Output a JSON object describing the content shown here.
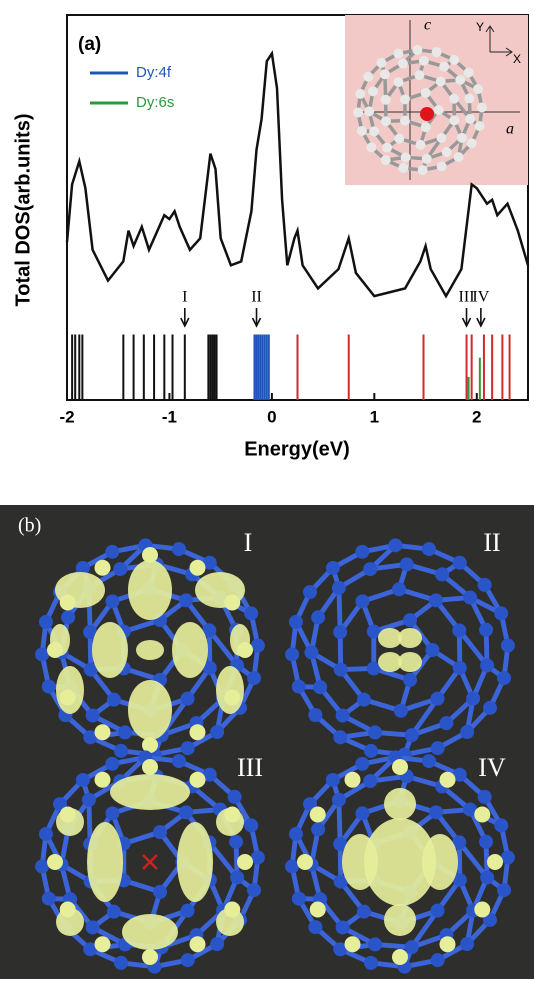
{
  "chart_data": {
    "type": "line",
    "title": "(a)",
    "xlabel": "Energy(eV)",
    "ylabel": "Total DOS(arb.units)",
    "xlim": [
      -2,
      2.5
    ],
    "xticks": [
      -2,
      -1,
      0,
      1,
      2
    ],
    "ylim": [
      0,
      100
    ],
    "series": [
      {
        "color": "#111111",
        "x": [
          -2.0,
          -1.95,
          -1.88,
          -1.82,
          -1.75,
          -1.6,
          -1.45,
          -1.4,
          -1.35,
          -1.27,
          -1.2,
          -1.1,
          -1.05,
          -1.0,
          -0.95,
          -0.9,
          -0.8,
          -0.7,
          -0.6,
          -0.55,
          -0.5,
          -0.4,
          -0.3,
          -0.2,
          -0.15,
          -0.1,
          -0.05,
          0.0,
          0.05,
          0.1,
          0.15,
          0.22,
          0.25,
          0.3,
          0.45,
          0.65,
          0.75,
          0.82,
          1.0,
          1.3,
          1.45,
          1.5,
          1.55,
          1.7,
          1.85,
          1.95,
          2.0,
          2.05,
          2.1,
          2.15,
          2.2,
          2.3,
          2.4,
          2.5
        ],
        "values": [
          41,
          56,
          62,
          55,
          39,
          31,
          36,
          44,
          40,
          45,
          39,
          45,
          48,
          47,
          49,
          45,
          39,
          42,
          64,
          60,
          42,
          35,
          36,
          49,
          65,
          73,
          88,
          90,
          81,
          52,
          35,
          42,
          44,
          35,
          29,
          34,
          42,
          33,
          27,
          29,
          36,
          40,
          34,
          27,
          34,
          56,
          55,
          53,
          51,
          52,
          48,
          51,
          44,
          35
        ]
      }
    ],
    "levels": [
      {
        "color": "#111111",
        "x": [
          -1.95,
          -1.92,
          -1.88,
          -1.85,
          -1.45,
          -1.35,
          -1.25,
          -1.15,
          -1.05,
          -0.97,
          -0.85,
          -0.62,
          -0.6,
          -0.58,
          -0.56,
          -0.54
        ],
        "values": [
          17,
          17,
          17,
          17,
          17,
          17,
          17,
          17,
          17,
          17,
          17,
          17,
          17,
          17,
          17,
          17
        ]
      },
      {
        "name": "Dy:4f",
        "color": "#1f55b8",
        "x": [
          -0.17,
          -0.15,
          -0.13,
          -0.11,
          -0.09,
          -0.07,
          -0.05,
          -0.03,
          0.25
        ],
        "values": [
          17,
          17,
          17,
          17,
          17,
          17,
          17,
          17,
          2
        ]
      },
      {
        "color": "#d02a2a",
        "x": [
          0.25,
          0.75,
          1.48,
          1.9,
          1.95,
          2.07,
          2.15,
          2.25,
          2.32
        ],
        "values": [
          17,
          17,
          17,
          17,
          17,
          17,
          17,
          17,
          17
        ]
      },
      {
        "name": "Dy:6s",
        "color": "#2a9a3a",
        "x": [
          1.92,
          2.03
        ],
        "values": [
          6,
          11
        ]
      }
    ],
    "annotations": [
      {
        "text": "I",
        "x": -0.85
      },
      {
        "text": "II",
        "x": -0.15
      },
      {
        "text": "III",
        "x": 1.9
      },
      {
        "text": "IV",
        "x": 2.04
      }
    ],
    "inset_labels": [
      "c",
      "a",
      "Y",
      "X"
    ]
  },
  "panel_b": {
    "label": "(b)",
    "images": [
      "I",
      "II",
      "III",
      "IV"
    ]
  }
}
